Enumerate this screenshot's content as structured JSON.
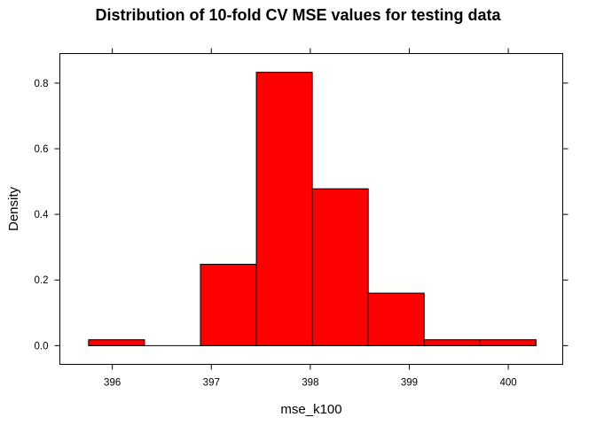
{
  "chart_data": {
    "type": "bar",
    "subtype": "histogram",
    "title": "Distribution of 10-fold CV MSE values for testing data",
    "xlabel": "mse_k100",
    "ylabel": "Density",
    "xlim": [
      395.47,
      400.55
    ],
    "ylim": [
      -0.057,
      0.89
    ],
    "xticks": [
      396,
      397,
      398,
      399,
      400
    ],
    "yticks": [
      0.0,
      0.2,
      0.4,
      0.6,
      0.8
    ],
    "xtick_labels": [
      "396",
      "397",
      "398",
      "399",
      "400"
    ],
    "ytick_labels": [
      "0.0",
      "0.2",
      "0.4",
      "0.6",
      "0.8"
    ],
    "bin_edges": [
      395.76,
      396.325,
      396.89,
      397.455,
      398.02,
      398.585,
      399.15,
      399.715,
      400.28
    ],
    "values": [
      0.018,
      0.0,
      0.248,
      0.833,
      0.478,
      0.16,
      0.018,
      0.018
    ],
    "bar_color": "#ff0000",
    "grid": false,
    "ticks_on_all_sides": true
  }
}
